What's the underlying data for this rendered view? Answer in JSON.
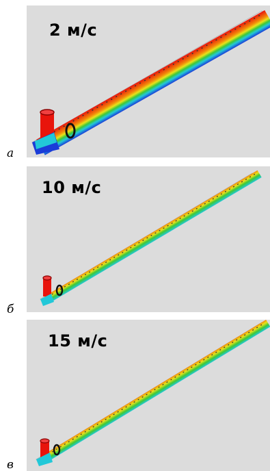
{
  "panels": [
    {
      "speed_label": "2 м/с",
      "letter": "а"
    },
    {
      "speed_label": "10 м/с",
      "letter": "б"
    },
    {
      "speed_label": "15 м/с",
      "letter": "в"
    }
  ],
  "colors": {
    "background": "#dcdcdc",
    "red": "#e8140c",
    "orange": "#f28a0a",
    "yellow": "#e8e21a",
    "green": "#3cc83a",
    "cyan": "#22c8d8",
    "blue": "#1a3cd8"
  }
}
